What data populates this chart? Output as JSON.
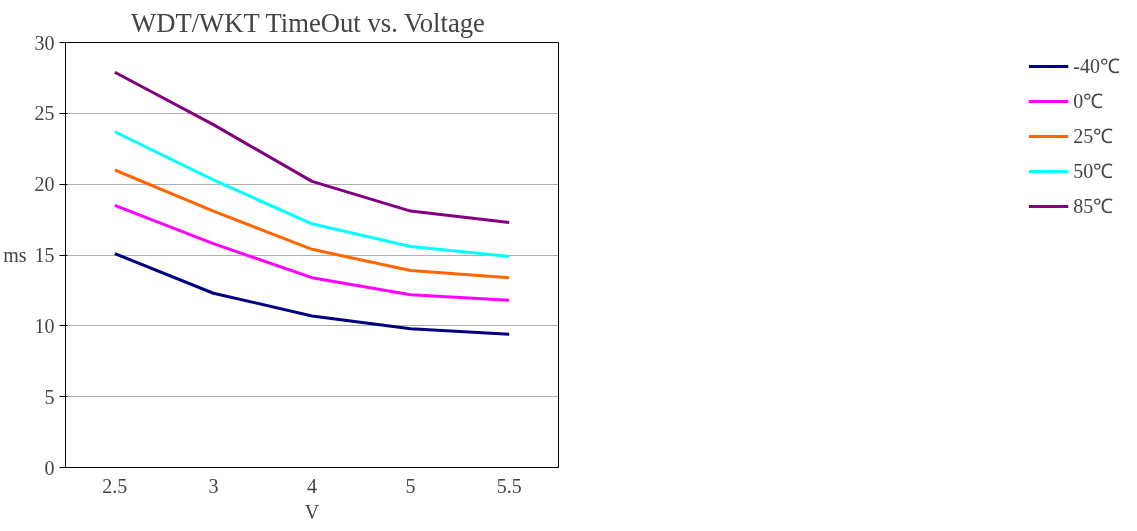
{
  "chart_data": {
    "type": "line",
    "title": "WDT/WKT TimeOut  vs. Voltage",
    "xlabel": "V",
    "ylabel": "ms",
    "categories": [
      "2.5",
      "3",
      "4",
      "5",
      "5.5"
    ],
    "series": [
      {
        "name": "-40℃",
        "color": "#000080",
        "values": [
          15.1,
          12.3,
          10.7,
          9.8,
          9.4
        ]
      },
      {
        "name": "0℃",
        "color": "#ff00ff",
        "values": [
          18.5,
          15.8,
          13.4,
          12.2,
          11.8
        ]
      },
      {
        "name": "25℃",
        "color": "#ff6600",
        "values": [
          21.0,
          18.1,
          15.4,
          13.9,
          13.4
        ]
      },
      {
        "name": "50℃",
        "color": "#00ffff",
        "values": [
          23.7,
          20.3,
          17.2,
          15.6,
          14.9
        ]
      },
      {
        "name": "85℃",
        "color": "#800080",
        "values": [
          27.9,
          24.2,
          20.2,
          18.1,
          17.3
        ]
      }
    ],
    "ylim": [
      0,
      30
    ],
    "yticks": [
      0,
      5,
      10,
      15,
      20,
      25,
      30
    ],
    "grid": "y",
    "legend": "right",
    "marker": "none",
    "line_style": "solid"
  }
}
